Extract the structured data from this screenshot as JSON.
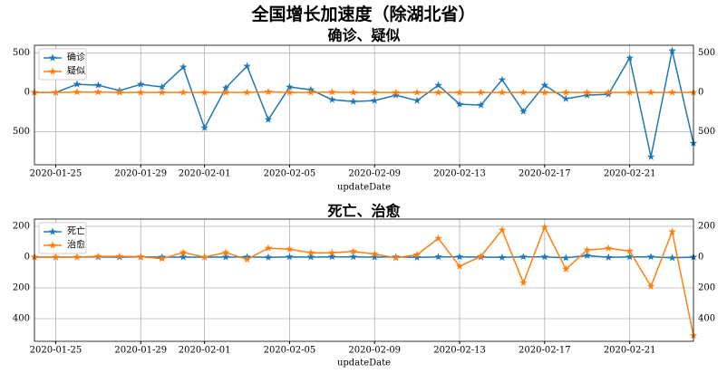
{
  "title": "全国增长加速度（除湖北省）",
  "chart_data": [
    {
      "type": "line",
      "title": "确诊、疑似",
      "xlabel": "updateDate",
      "x": [
        "2020-01-24",
        "2020-01-25",
        "2020-01-26",
        "2020-01-27",
        "2020-01-28",
        "2020-01-29",
        "2020-01-30",
        "2020-01-31",
        "2020-02-01",
        "2020-02-02",
        "2020-02-03",
        "2020-02-04",
        "2020-02-05",
        "2020-02-06",
        "2020-02-07",
        "2020-02-08",
        "2020-02-09",
        "2020-02-10",
        "2020-02-11",
        "2020-02-12",
        "2020-02-13",
        "2020-02-14",
        "2020-02-15",
        "2020-02-16",
        "2020-02-17",
        "2020-02-18",
        "2020-02-19",
        "2020-02-20",
        "2020-02-21",
        "2020-02-22",
        "2020-02-23",
        "2020-02-24"
      ],
      "series": [
        {
          "name": "确诊",
          "color": "#1f77b4",
          "values": [
            0,
            0,
            104,
            92,
            23,
            104,
            69,
            323,
            -450,
            58,
            335,
            -346,
            69,
            35,
            -92,
            -115,
            -104,
            -35,
            -104,
            92,
            -150,
            -161,
            161,
            -242,
            92,
            -81,
            -35,
            -23,
            438,
            -819,
            530,
            -646
          ]
        },
        {
          "name": "疑似",
          "color": "#ff7f0e",
          "values": [
            0,
            0,
            5,
            5,
            0,
            0,
            0,
            0,
            0,
            0,
            0,
            8,
            0,
            0,
            5,
            0,
            0,
            0,
            0,
            0,
            0,
            0,
            0,
            0,
            0,
            0,
            0,
            0,
            0,
            0,
            0,
            0
          ]
        }
      ],
      "xlim": [
        "2020-01-24",
        "2020-02-24"
      ],
      "xticks": [
        "2020-01-25",
        "2020-01-29",
        "2020-02-01",
        "2020-02-05",
        "2020-02-09",
        "2020-02-13",
        "2020-02-17",
        "2020-02-21"
      ],
      "ylim": [
        -920,
        600
      ],
      "yticks": [
        {
          "value": -500,
          "label": "500"
        },
        0,
        500
      ],
      "grid": true,
      "legend": "upper left"
    },
    {
      "type": "line",
      "title": "死亡、治愈",
      "xlabel": "updateDate",
      "x": [
        "2020-01-24",
        "2020-01-25",
        "2020-01-26",
        "2020-01-27",
        "2020-01-28",
        "2020-01-29",
        "2020-01-30",
        "2020-01-31",
        "2020-02-01",
        "2020-02-02",
        "2020-02-03",
        "2020-02-04",
        "2020-02-05",
        "2020-02-06",
        "2020-02-07",
        "2020-02-08",
        "2020-02-09",
        "2020-02-10",
        "2020-02-11",
        "2020-02-12",
        "2020-02-13",
        "2020-02-14",
        "2020-02-15",
        "2020-02-16",
        "2020-02-17",
        "2020-02-18",
        "2020-02-19",
        "2020-02-20",
        "2020-02-21",
        "2020-02-22",
        "2020-02-23",
        "2020-02-24"
      ],
      "series": [
        {
          "name": "死亡",
          "color": "#1f77b4",
          "values": [
            0,
            0,
            0,
            1,
            0,
            1,
            0,
            0,
            0,
            0,
            1,
            -1,
            2,
            0,
            2,
            2,
            0,
            1,
            -2,
            2,
            2,
            0,
            -2,
            2,
            2,
            -5,
            10,
            -2,
            2,
            2,
            -5,
            0
          ]
        },
        {
          "name": "治愈",
          "color": "#ff7f0e",
          "values": [
            0,
            0,
            0,
            5,
            5,
            3,
            -10,
            30,
            0,
            30,
            -15,
            58,
            52,
            28,
            28,
            37,
            20,
            -5,
            15,
            122,
            -60,
            5,
            176,
            -167,
            195,
            -78,
            46,
            57,
            40,
            -190,
            165,
            -510
          ]
        }
      ],
      "xlim": [
        "2020-01-24",
        "2020-02-24"
      ],
      "xticks": [
        "2020-01-25",
        "2020-01-29",
        "2020-02-01",
        "2020-02-05",
        "2020-02-09",
        "2020-02-13",
        "2020-02-17",
        "2020-02-21"
      ],
      "ylim": [
        -547,
        247
      ],
      "yticks": [
        {
          "value": -400,
          "label": "400"
        },
        {
          "value": -200,
          "label": "200"
        },
        0,
        200
      ],
      "grid": true,
      "legend": "upper left"
    }
  ]
}
